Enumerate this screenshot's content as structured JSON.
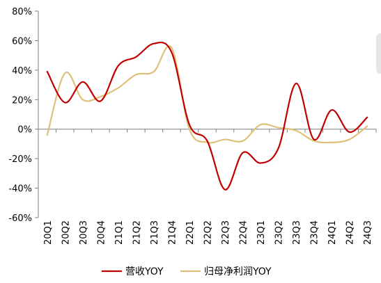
{
  "colors": {
    "series_1": "#c00000",
    "series_2": "#e0c078",
    "axis": "#7f7f7f",
    "edge_sliver": "#e6e6e6"
  },
  "chart_data": {
    "type": "line",
    "categories": [
      "20Q1",
      "20Q2",
      "20Q3",
      "20Q4",
      "21Q1",
      "21Q2",
      "21Q3",
      "21Q4",
      "22Q1",
      "22Q2",
      "22Q3",
      "22Q4",
      "23Q1",
      "23Q2",
      "23Q3",
      "23Q4",
      "24Q1",
      "24Q2",
      "24Q3"
    ],
    "ylim": [
      -60,
      80
    ],
    "yticks": [
      -60,
      -40,
      -20,
      0,
      20,
      40,
      60,
      80
    ],
    "ytick_format": "percent",
    "grid": false,
    "legend_position": "bottom",
    "series": [
      {
        "name": "营收YOY",
        "color_key": "series_1",
        "values": [
          39,
          18,
          32,
          19,
          43,
          49,
          58,
          52,
          3,
          -8,
          -41,
          -16,
          -23,
          -13,
          31,
          -7,
          13,
          -2,
          8
        ]
      },
      {
        "name": "归母净利润YOY",
        "color_key": "series_2",
        "values": [
          -4,
          38,
          20,
          22,
          28,
          37,
          39,
          55,
          0,
          -9,
          -7,
          -8,
          3,
          1,
          -1,
          -8,
          -9,
          -7,
          2
        ]
      }
    ]
  }
}
